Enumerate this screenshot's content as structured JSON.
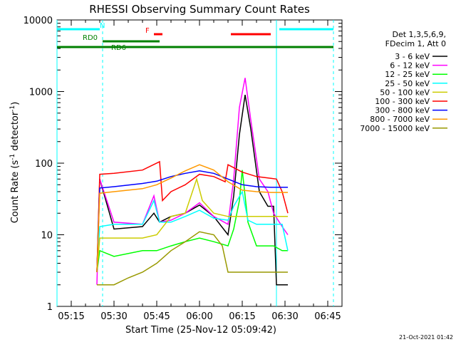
{
  "chart_data": {
    "type": "line",
    "title": "RHESSI Observing Summary Count Rates",
    "xlabel": "Start Time (25-Nov-12 05:09:42)",
    "ylabel_parts": [
      "Count Rate (s",
      "-1",
      " detector",
      "-1",
      ")"
    ],
    "yscale": "log",
    "ylim": [
      1,
      10000
    ],
    "xlim_minutes": [
      "05:10",
      "06:50"
    ],
    "x_tick_labels": [
      "05:15",
      "05:30",
      "05:45",
      "06:00",
      "06:15",
      "06:30",
      "06:45"
    ],
    "y_tick_labels": [
      "1",
      "10",
      "100",
      "1000",
      "10000"
    ],
    "legend_header": [
      "Det 1,3,5,6,9,",
      "FDecim 1, Att 0"
    ],
    "series": [
      {
        "name": "3 - 6 keV",
        "color": "#000000",
        "points": [
          [
            "05:24",
            3
          ],
          [
            "05:25",
            60
          ],
          [
            "05:30",
            12
          ],
          [
            "05:40",
            13
          ],
          [
            "05:44",
            20
          ],
          [
            "05:46",
            15
          ],
          [
            "05:50",
            18
          ],
          [
            "05:55",
            20
          ],
          [
            "06:00",
            26
          ],
          [
            "06:05",
            18
          ],
          [
            "06:10",
            10
          ],
          [
            "06:12",
            35
          ],
          [
            "06:14",
            250
          ],
          [
            "06:16",
            900
          ],
          [
            "06:18",
            300
          ],
          [
            "06:21",
            40
          ],
          [
            "06:24",
            25
          ],
          [
            "06:26",
            25
          ],
          [
            "06:27",
            2
          ],
          [
            "06:29",
            2
          ],
          [
            "06:31",
            2
          ]
        ]
      },
      {
        "name": "6 - 12 keV",
        "color": "#ff00ff",
        "points": [
          [
            "05:24",
            2
          ],
          [
            "05:25",
            60
          ],
          [
            "05:30",
            15
          ],
          [
            "05:40",
            14
          ],
          [
            "05:44",
            35
          ],
          [
            "05:46",
            15
          ],
          [
            "05:50",
            16
          ],
          [
            "05:55",
            20
          ],
          [
            "06:00",
            28
          ],
          [
            "06:05",
            18
          ],
          [
            "06:10",
            14
          ],
          [
            "06:12",
            60
          ],
          [
            "06:14",
            600
          ],
          [
            "06:16",
            1550
          ],
          [
            "06:18",
            400
          ],
          [
            "06:21",
            60
          ],
          [
            "06:24",
            40
          ],
          [
            "06:26",
            20
          ],
          [
            "06:29",
            13
          ],
          [
            "06:31",
            10
          ]
        ]
      },
      {
        "name": "12 - 25 keV",
        "color": "#00ff00",
        "points": [
          [
            "05:24",
            3
          ],
          [
            "05:25",
            6
          ],
          [
            "05:30",
            5
          ],
          [
            "05:40",
            6
          ],
          [
            "05:45",
            6
          ],
          [
            "05:50",
            7
          ],
          [
            "05:55",
            8
          ],
          [
            "06:00",
            9
          ],
          [
            "06:05",
            8
          ],
          [
            "06:10",
            7
          ],
          [
            "06:12",
            12
          ],
          [
            "06:14",
            30
          ],
          [
            "06:15",
            80
          ],
          [
            "06:17",
            15
          ],
          [
            "06:20",
            7
          ],
          [
            "06:26",
            7
          ],
          [
            "06:29",
            6
          ],
          [
            "06:31",
            6
          ]
        ]
      },
      {
        "name": "25 - 50 keV",
        "color": "#00ffff",
        "points": [
          [
            "05:24",
            3
          ],
          [
            "05:25",
            13
          ],
          [
            "05:30",
            14
          ],
          [
            "05:40",
            14
          ],
          [
            "05:44",
            30
          ],
          [
            "05:46",
            15
          ],
          [
            "05:50",
            15
          ],
          [
            "05:55",
            18
          ],
          [
            "06:00",
            22
          ],
          [
            "06:05",
            17
          ],
          [
            "06:10",
            16
          ],
          [
            "06:12",
            25
          ],
          [
            "06:15",
            40
          ],
          [
            "06:17",
            16
          ],
          [
            "06:20",
            14
          ],
          [
            "06:26",
            14
          ],
          [
            "06:29",
            14
          ],
          [
            "06:31",
            6
          ]
        ]
      },
      {
        "name": "50 - 100 keV",
        "color": "#cccc00",
        "points": [
          [
            "05:24",
            3
          ],
          [
            "05:25",
            9
          ],
          [
            "05:30",
            9
          ],
          [
            "05:40",
            9
          ],
          [
            "05:45",
            10
          ],
          [
            "05:50",
            18
          ],
          [
            "05:55",
            20
          ],
          [
            "05:59",
            60
          ],
          [
            "06:01",
            30
          ],
          [
            "06:05",
            20
          ],
          [
            "06:10",
            18
          ],
          [
            "06:26",
            18
          ],
          [
            "06:31",
            18
          ]
        ]
      },
      {
        "name": "100 - 300 keV",
        "color": "#ff0000",
        "points": [
          [
            "05:24",
            3
          ],
          [
            "05:25",
            70
          ],
          [
            "05:30",
            72
          ],
          [
            "05:40",
            80
          ],
          [
            "05:46",
            105
          ],
          [
            "05:47",
            30
          ],
          [
            "05:50",
            40
          ],
          [
            "05:55",
            50
          ],
          [
            "06:00",
            70
          ],
          [
            "06:05",
            65
          ],
          [
            "06:09",
            55
          ],
          [
            "06:10",
            95
          ],
          [
            "06:15",
            75
          ],
          [
            "06:20",
            65
          ],
          [
            "06:27",
            60
          ],
          [
            "06:29",
            40
          ],
          [
            "06:31",
            20
          ]
        ]
      },
      {
        "name": "300 - 800 keV",
        "color": "#0000ff",
        "points": [
          [
            "05:24",
            3
          ],
          [
            "05:25",
            45
          ],
          [
            "05:30",
            47
          ],
          [
            "05:40",
            52
          ],
          [
            "05:45",
            56
          ],
          [
            "05:50",
            65
          ],
          [
            "05:55",
            72
          ],
          [
            "06:00",
            78
          ],
          [
            "06:05",
            72
          ],
          [
            "06:10",
            60
          ],
          [
            "06:15",
            50
          ],
          [
            "06:20",
            47
          ],
          [
            "06:25",
            46
          ],
          [
            "06:31",
            46
          ]
        ]
      },
      {
        "name": "800 - 7000 keV",
        "color": "#ff9900",
        "points": [
          [
            "05:24",
            3
          ],
          [
            "05:25",
            38
          ],
          [
            "05:30",
            40
          ],
          [
            "05:40",
            44
          ],
          [
            "05:45",
            50
          ],
          [
            "05:50",
            62
          ],
          [
            "05:55",
            78
          ],
          [
            "06:00",
            95
          ],
          [
            "06:05",
            80
          ],
          [
            "06:10",
            55
          ],
          [
            "06:15",
            42
          ],
          [
            "06:20",
            40
          ],
          [
            "06:25",
            39
          ],
          [
            "06:31",
            39
          ]
        ]
      },
      {
        "name": "7000 - 15000 keV",
        "color": "#999900",
        "points": [
          [
            "05:24",
            2
          ],
          [
            "05:25",
            2
          ],
          [
            "05:30",
            2
          ],
          [
            "05:35",
            2.5
          ],
          [
            "05:40",
            3
          ],
          [
            "05:45",
            4
          ],
          [
            "05:50",
            6
          ],
          [
            "05:55",
            8
          ],
          [
            "06:00",
            11
          ],
          [
            "06:05",
            10
          ],
          [
            "06:08",
            7
          ],
          [
            "06:10",
            3
          ],
          [
            "06:20",
            3
          ],
          [
            "06:28",
            3
          ],
          [
            "06:31",
            3
          ]
        ]
      }
    ],
    "flag_bars": [
      {
        "label": "N",
        "color": "#00ffff",
        "segments": [
          [
            "05:10",
            "05:25"
          ],
          [
            "06:28",
            "06:47"
          ]
        ]
      },
      {
        "label": "F",
        "color": "#ff0000",
        "segments": [
          [
            "05:44",
            "05:47"
          ],
          [
            "06:11",
            "06:25"
          ]
        ]
      },
      {
        "label": "RD0",
        "color": "#008000",
        "segments": [
          [
            "05:26",
            "05:46"
          ]
        ]
      },
      {
        "label": "RD6",
        "color": "#008000",
        "segments": [
          [
            "05:10",
            "05:46"
          ],
          [
            "05:46",
            "06:07"
          ],
          [
            "06:07",
            "06:33"
          ],
          [
            "06:33",
            "06:47"
          ]
        ]
      }
    ],
    "vlines": [
      {
        "color": "#00ffff",
        "style": "solid",
        "at": [
          "05:10",
          "06:27"
        ]
      },
      {
        "color": "#00ffff",
        "style": "dashed",
        "at": [
          "05:26",
          "06:47"
        ]
      }
    ],
    "timestamp": "21-Oct-2021 01:42"
  }
}
